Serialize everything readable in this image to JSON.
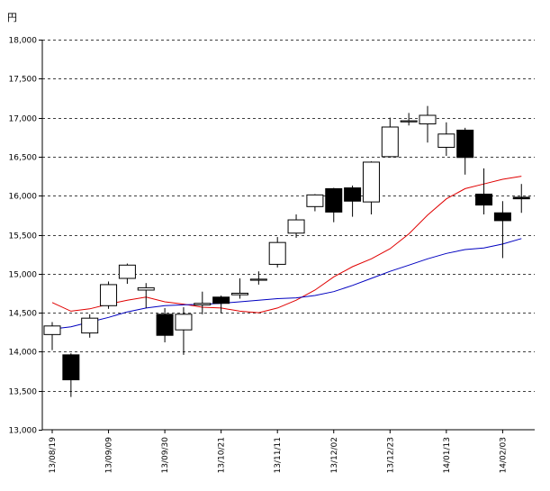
{
  "chart_data": {
    "type": "candlestick",
    "title": "",
    "unit_label": "円",
    "ylim": [
      13000,
      18000
    ],
    "y_ticks": [
      13000,
      13500,
      14000,
      14500,
      15000,
      15500,
      16000,
      16500,
      17000,
      17500,
      18000
    ],
    "y_tick_labels": [
      "13,000",
      "13,500",
      "14,000",
      "14,500",
      "15,000",
      "15,500",
      "16,000",
      "16,500",
      "17,000",
      "17,500",
      "18,000"
    ],
    "grid": "horizontal dashed",
    "x_tick_labels": [
      {
        "index": 0,
        "label": "13/08/19"
      },
      {
        "index": 3,
        "label": "13/09/09"
      },
      {
        "index": 6,
        "label": "13/09/30"
      },
      {
        "index": 9,
        "label": "13/10/21"
      },
      {
        "index": 12,
        "label": "13/11/11"
      },
      {
        "index": 15,
        "label": "13/12/02"
      },
      {
        "index": 18,
        "label": "13/12/23"
      },
      {
        "index": 21,
        "label": "14/01/13"
      },
      {
        "index": 24,
        "label": "14/02/03"
      }
    ],
    "candles": [
      {
        "open": 14220,
        "high": 14380,
        "low": 14020,
        "close": 14330
      },
      {
        "open": 13960,
        "high": 13980,
        "low": 13420,
        "close": 13640
      },
      {
        "open": 14240,
        "high": 14480,
        "low": 14180,
        "close": 14430
      },
      {
        "open": 14590,
        "high": 14900,
        "low": 14550,
        "close": 14860
      },
      {
        "open": 14940,
        "high": 15130,
        "low": 14870,
        "close": 15110
      },
      {
        "open": 14790,
        "high": 14880,
        "low": 14560,
        "close": 14820
      },
      {
        "open": 14480,
        "high": 14560,
        "low": 14120,
        "close": 14210
      },
      {
        "open": 14280,
        "high": 14570,
        "low": 13960,
        "close": 14480
      },
      {
        "open": 14600,
        "high": 14770,
        "low": 14480,
        "close": 14620
      },
      {
        "open": 14700,
        "high": 14720,
        "low": 14490,
        "close": 14620
      },
      {
        "open": 14730,
        "high": 14940,
        "low": 14680,
        "close": 14750
      },
      {
        "open": 14920,
        "high": 15030,
        "low": 14860,
        "close": 14930
      },
      {
        "open": 15120,
        "high": 15470,
        "low": 15080,
        "close": 15400
      },
      {
        "open": 15520,
        "high": 15760,
        "low": 15460,
        "close": 15690
      },
      {
        "open": 15860,
        "high": 16020,
        "low": 15800,
        "close": 16010
      },
      {
        "open": 16090,
        "high": 16100,
        "low": 15660,
        "close": 15790
      },
      {
        "open": 16100,
        "high": 16130,
        "low": 15730,
        "close": 15930
      },
      {
        "open": 15920,
        "high": 16440,
        "low": 15760,
        "close": 16430
      },
      {
        "open": 16500,
        "high": 17000,
        "low": 16490,
        "close": 16880
      },
      {
        "open": 16960,
        "high": 17060,
        "low": 16900,
        "close": 16960
      },
      {
        "open": 16920,
        "high": 17150,
        "low": 16680,
        "close": 17030
      },
      {
        "open": 16620,
        "high": 16940,
        "low": 16510,
        "close": 16790
      },
      {
        "open": 16840,
        "high": 16870,
        "low": 16270,
        "close": 16490
      },
      {
        "open": 16020,
        "high": 16350,
        "low": 15760,
        "close": 15880
      },
      {
        "open": 15780,
        "high": 15930,
        "low": 15200,
        "close": 15680
      },
      {
        "open": 15980,
        "high": 16150,
        "low": 15780,
        "close": 15960
      }
    ],
    "series": [
      {
        "color": "#e00000",
        "values": [
          14630,
          14520,
          14550,
          14610,
          14660,
          14700,
          14640,
          14610,
          14570,
          14560,
          14520,
          14500,
          14560,
          14660,
          14790,
          14960,
          15090,
          15190,
          15320,
          15510,
          15750,
          15960,
          16090,
          16150,
          16210,
          16250
        ]
      },
      {
        "color": "#0000c0",
        "values": [
          14290,
          14320,
          14380,
          14440,
          14510,
          14560,
          14590,
          14600,
          14610,
          14620,
          14640,
          14660,
          14680,
          14690,
          14720,
          14770,
          14850,
          14940,
          15030,
          15110,
          15190,
          15260,
          15310,
          15330,
          15380,
          15450
        ]
      }
    ]
  }
}
